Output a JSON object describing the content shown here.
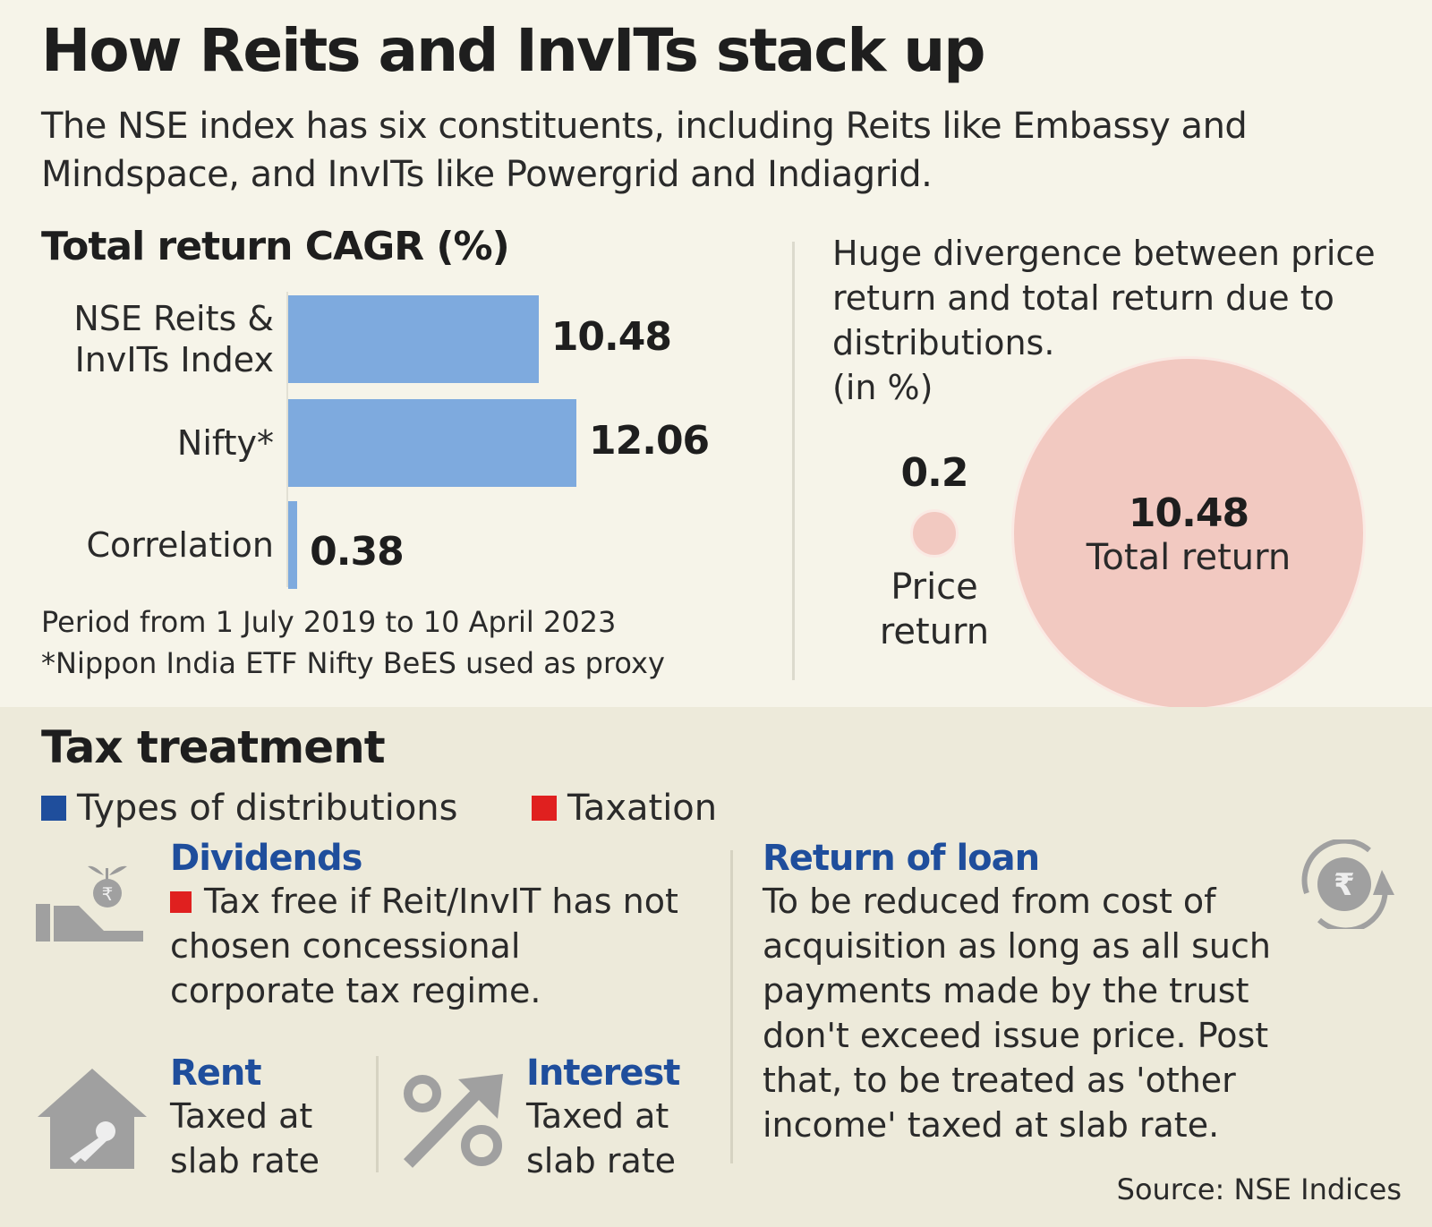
{
  "title": "How Reits and InvITs stack up",
  "subtitle": "The NSE index has six constituents, including Reits like Embassy and Mindspace, and InvITs like Powergrid and Indiagrid.",
  "chart_data": [
    {
      "type": "bar",
      "title": "Total return CAGR (%)",
      "orientation": "horizontal",
      "categories": [
        "NSE Reits & InvITs Index",
        "Nifty*",
        "Correlation"
      ],
      "values": [
        10.48,
        12.06,
        0.38
      ],
      "labels": [
        "10.48",
        "12.06",
        "0.38"
      ],
      "color": "#7eaade"
    },
    {
      "type": "bubble",
      "title": "Huge divergence between price return and total return due to distributions.",
      "unit": "(in %)",
      "categories": [
        "Price return",
        "Total return"
      ],
      "values": [
        0.2,
        10.48
      ],
      "labels": [
        "0.2",
        "10.48"
      ],
      "color": "#f2c9c1"
    }
  ],
  "notes": [
    "Period from 1 July 2019 to 10 April 2023",
    "*Nippon India ETF Nifty BeES used as proxy"
  ],
  "tax": {
    "title": "Tax treatment",
    "legend": [
      {
        "label": "Types of distributions",
        "color": "#1f4e9c"
      },
      {
        "label": "Taxation",
        "color": "#e0201f"
      }
    ],
    "dividends": {
      "heading": "Dividends",
      "text": "Tax free if Reit/InvIT has not chosen concessional corporate tax regime.",
      "icon": "hand-rupee-plant-icon"
    },
    "rent": {
      "heading": "Rent",
      "text": "Taxed at slab rate",
      "icon": "house-key-icon"
    },
    "interest": {
      "heading": "Interest",
      "text": "Taxed at slab rate",
      "icon": "percent-arrow-icon"
    },
    "loan": {
      "heading": "Return of loan",
      "text": "To be reduced from cost of acquisition as long as all such payments made by the trust don't exceed issue price. Post that, to be treated as 'other income' taxed at slab rate.",
      "icon": "rupee-cycle-icon"
    }
  },
  "source": "Source: NSE Indices"
}
